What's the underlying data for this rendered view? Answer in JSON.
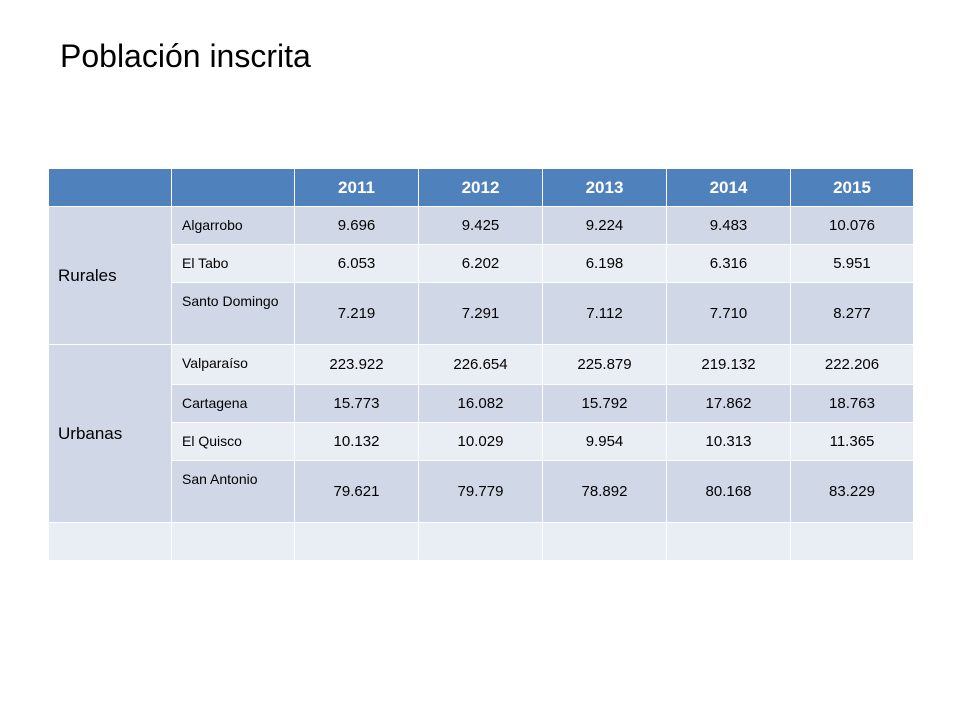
{
  "title": "Población inscrita",
  "table": {
    "header_corner": [
      "",
      ""
    ],
    "years": [
      "2011",
      "2012",
      "2013",
      "2014",
      "2015"
    ],
    "groups": [
      {
        "label": "Rurales",
        "rows": [
          {
            "name": "Algarrobo",
            "values": [
              "9.696",
              "9.425",
              "9.224",
              "9.483",
              "10.076"
            ]
          },
          {
            "name": "El Tabo",
            "values": [
              "6.053",
              "6.202",
              "6.198",
              "6.316",
              "5.951"
            ]
          },
          {
            "name": "Santo Domingo",
            "values": [
              "7.219",
              "7.291",
              "7.112",
              "7.710",
              "8.277"
            ]
          }
        ]
      },
      {
        "label": "Urbanas",
        "rows": [
          {
            "name": "Valparaíso",
            "values": [
              "223.922",
              "226.654",
              "225.879",
              "219.132",
              "222.206"
            ]
          },
          {
            "name": "Cartagena",
            "values": [
              "15.773",
              "16.082",
              "15.792",
              "17.862",
              "18.763"
            ]
          },
          {
            "name": "El Quisco",
            "values": [
              "10.132",
              "10.029",
              "9.954",
              "10.313",
              "11.365"
            ]
          },
          {
            "name": "San Antonio",
            "values": [
              "79.621",
              "79.779",
              "78.892",
              "80.168",
              "83.229"
            ]
          }
        ]
      }
    ]
  },
  "colors": {
    "header": "#4f81bd",
    "row_band_dark": "#d0d8e8",
    "row_band_light": "#e9edf4"
  }
}
